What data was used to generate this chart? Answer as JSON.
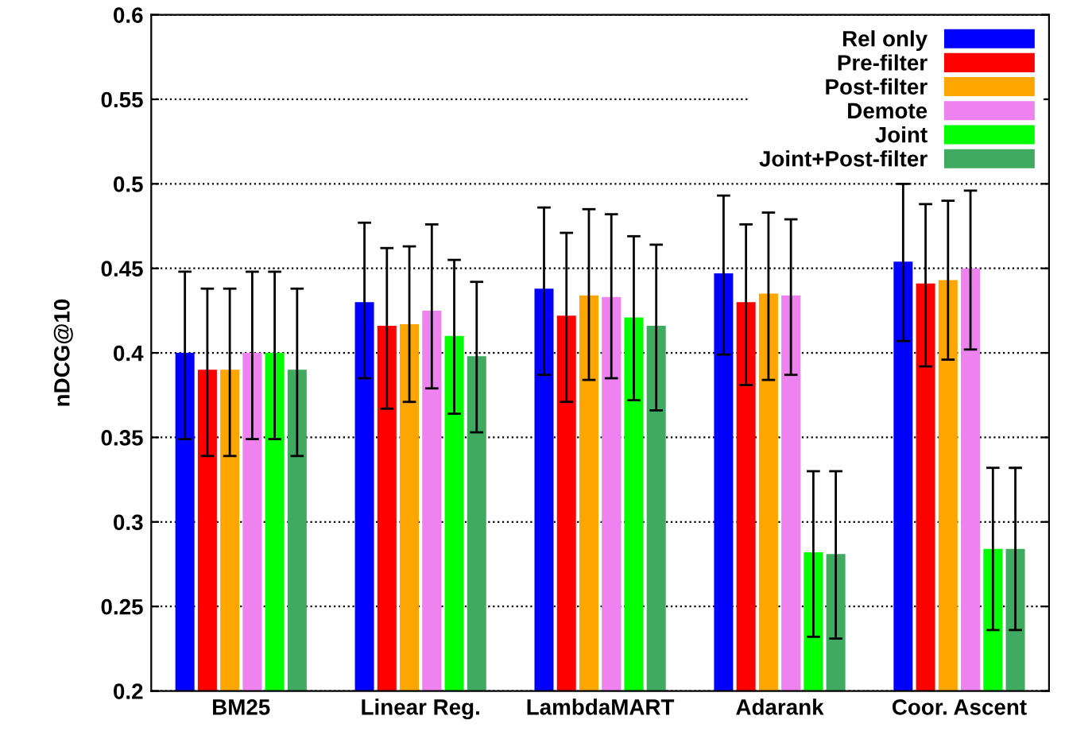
{
  "chart_data": {
    "type": "bar",
    "ylabel": "nDCG@10",
    "categories": [
      "BM25",
      "Linear Reg.",
      "LambdaMART",
      "Adarank",
      "Coor. Ascent"
    ],
    "ylim": [
      0.2,
      0.6
    ],
    "yticks": [
      0.2,
      0.25,
      0.3,
      0.35,
      0.4,
      0.45,
      0.5,
      0.55,
      0.6
    ],
    "grid": "y",
    "legend": "top right",
    "series": [
      {
        "name": "Rel only",
        "color": "#0000ff",
        "values": [
          0.4,
          0.43,
          0.438,
          0.447,
          0.454
        ],
        "errors": [
          [
            0.349,
            0.448
          ],
          [
            0.385,
            0.477
          ],
          [
            0.387,
            0.486
          ],
          [
            0.399,
            0.493
          ],
          [
            0.407,
            0.5
          ]
        ]
      },
      {
        "name": "Pre-filter",
        "color": "#ff0000",
        "values": [
          0.39,
          0.416,
          0.422,
          0.43,
          0.441
        ],
        "errors": [
          [
            0.339,
            0.438
          ],
          [
            0.367,
            0.462
          ],
          [
            0.371,
            0.471
          ],
          [
            0.381,
            0.476
          ],
          [
            0.392,
            0.488
          ]
        ]
      },
      {
        "name": "Post-filter",
        "color": "#ffa500",
        "values": [
          0.39,
          0.417,
          0.434,
          0.435,
          0.443
        ],
        "errors": [
          [
            0.339,
            0.438
          ],
          [
            0.371,
            0.463
          ],
          [
            0.384,
            0.485
          ],
          [
            0.384,
            0.483
          ],
          [
            0.396,
            0.49
          ]
        ]
      },
      {
        "name": "Demote",
        "color": "#ee82ee",
        "values": [
          0.4,
          0.425,
          0.433,
          0.434,
          0.45
        ],
        "errors": [
          [
            0.349,
            0.448
          ],
          [
            0.379,
            0.476
          ],
          [
            0.385,
            0.482
          ],
          [
            0.387,
            0.479
          ],
          [
            0.402,
            0.496
          ]
        ]
      },
      {
        "name": "Joint",
        "color": "#00ff00",
        "values": [
          0.4,
          0.41,
          0.421,
          0.282,
          0.284
        ],
        "errors": [
          [
            0.349,
            0.448
          ],
          [
            0.364,
            0.455
          ],
          [
            0.372,
            0.469
          ],
          [
            0.232,
            0.33
          ],
          [
            0.236,
            0.332
          ]
        ]
      },
      {
        "name": "Joint+Post-filter",
        "color": "#40aa60",
        "values": [
          0.39,
          0.398,
          0.416,
          0.281,
          0.284
        ],
        "errors": [
          [
            0.339,
            0.438
          ],
          [
            0.353,
            0.442
          ],
          [
            0.366,
            0.464
          ],
          [
            0.231,
            0.33
          ],
          [
            0.236,
            0.332
          ]
        ]
      }
    ]
  }
}
